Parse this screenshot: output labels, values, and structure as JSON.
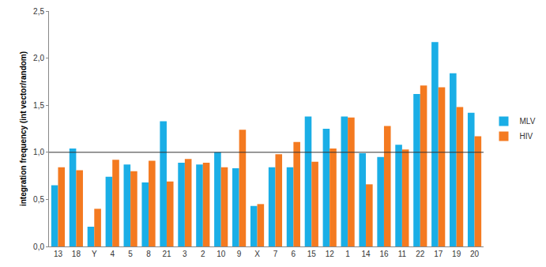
{
  "chart_data": {
    "type": "bar",
    "y_label": "integration frequency (int vector/random)",
    "categories": [
      "13",
      "18",
      "Y",
      "4",
      "5",
      "8",
      "21",
      "3",
      "2",
      "10",
      "9",
      "X",
      "7",
      "6",
      "15",
      "12",
      "1",
      "14",
      "16",
      "11",
      "22",
      "17",
      "19",
      "20"
    ],
    "series": [
      {
        "name": "MLV",
        "color": "#1aaee6",
        "values": [
          0.65,
          1.04,
          0.21,
          0.74,
          0.87,
          0.68,
          1.33,
          0.89,
          0.87,
          1.0,
          0.83,
          0.43,
          0.84,
          0.84,
          1.38,
          1.25,
          1.38,
          0.99,
          0.95,
          1.08,
          1.62,
          2.17,
          1.84,
          1.42
        ]
      },
      {
        "name": "HIV",
        "color": "#f47a20",
        "values": [
          0.84,
          0.81,
          0.4,
          0.92,
          0.8,
          0.91,
          0.69,
          0.93,
          0.89,
          0.84,
          1.24,
          0.45,
          0.98,
          1.11,
          0.9,
          1.04,
          1.37,
          0.66,
          1.28,
          1.03,
          1.71,
          1.69,
          1.48,
          1.17
        ]
      }
    ],
    "reference_line": 1.0,
    "ylim": [
      0,
      2.5
    ],
    "yticks": [
      {
        "value": 0,
        "label": "0,0"
      },
      {
        "value": 0.5,
        "label": "0,5"
      },
      {
        "value": 1,
        "label": "1,0"
      },
      {
        "value": 1.5,
        "label": "1,5"
      },
      {
        "value": 2,
        "label": "2,0"
      },
      {
        "value": 2.5,
        "label": "2,5"
      }
    ],
    "grid": false,
    "legend": "right"
  }
}
